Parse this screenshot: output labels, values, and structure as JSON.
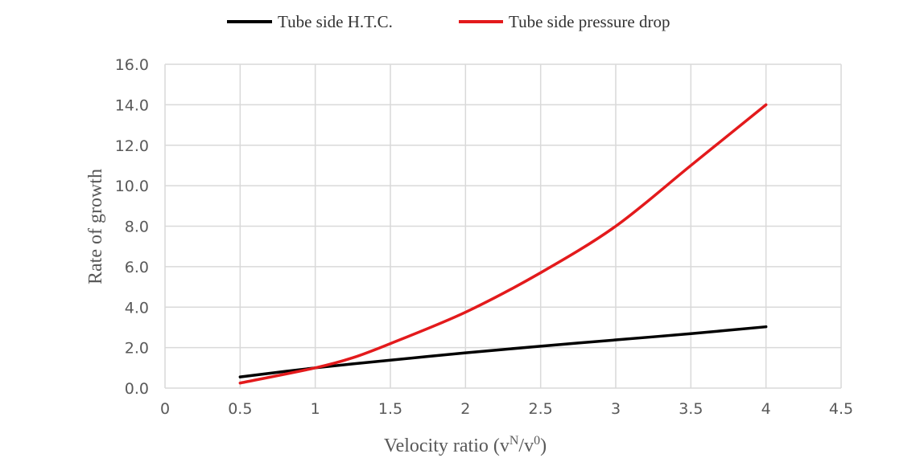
{
  "chart_data": {
    "type": "line",
    "xlabel": "Velocity ratio (v",
    "xlabel_sup1": "N",
    "xlabel_mid": "/v",
    "xlabel_sup2": "0",
    "xlabel_end": ")",
    "ylabel": "Rate of growth",
    "xlim": [
      0,
      4.5
    ],
    "ylim": [
      0,
      16
    ],
    "x_ticks": [
      "0",
      "0.5",
      "1",
      "1.5",
      "2",
      "2.5",
      "3",
      "3.5",
      "4",
      "4.5"
    ],
    "y_ticks": [
      "0.0",
      "2.0",
      "4.0",
      "6.0",
      "8.0",
      "10.0",
      "12.0",
      "14.0",
      "16.0"
    ],
    "grid": "vertical and horizontal",
    "legend_position": "top",
    "series": [
      {
        "name": "Tube side H.T.C.",
        "color": "#000000",
        "x": [
          0.5,
          1,
          1.5,
          2,
          2.5,
          3,
          3.5,
          4
        ],
        "y": [
          0.55,
          1.0,
          1.38,
          1.74,
          2.07,
          2.38,
          2.69,
          3.03
        ]
      },
      {
        "name": "Tube side pressure drop",
        "color": "#e31a1c",
        "x": [
          0.5,
          1,
          1.25,
          1.5,
          2,
          2.5,
          3,
          3.5,
          4
        ],
        "y": [
          0.25,
          1.0,
          1.5,
          2.2,
          3.75,
          5.7,
          8.0,
          11.0,
          14.0
        ]
      }
    ]
  }
}
